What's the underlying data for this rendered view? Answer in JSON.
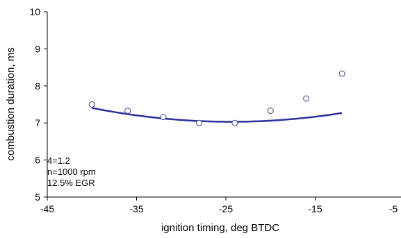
{
  "chart_data": {
    "type": "scatter",
    "title": "",
    "xlabel": "ignition timing, deg BTDC",
    "ylabel": "combustion duration, ms",
    "xlim": [
      -45,
      -5
    ],
    "ylim": [
      5,
      10
    ],
    "x_ticks": [
      "-45",
      "-35",
      "-25",
      "-15",
      "-5"
    ],
    "y_ticks": [
      "5",
      "6",
      "7",
      "8",
      "9",
      "10"
    ],
    "x_tick_values": [
      -45,
      -35,
      -25,
      -15,
      -5
    ],
    "y_tick_values": [
      5,
      6,
      7,
      8,
      9,
      10
    ],
    "grid": false,
    "series": [
      {
        "marker": "open-circle",
        "color": "#3a3f8f",
        "points": [
          {
            "x": -40,
            "y": 7.5
          },
          {
            "x": -36,
            "y": 7.33
          },
          {
            "x": -32,
            "y": 7.16
          },
          {
            "x": -28,
            "y": 7.0
          },
          {
            "x": -24,
            "y": 7.0
          },
          {
            "x": -20,
            "y": 7.33
          },
          {
            "x": -16,
            "y": 7.66
          },
          {
            "x": -12,
            "y": 8.33
          }
        ]
      }
    ],
    "trendline": {
      "type": "polynomial",
      "color": "#2b2f9e",
      "coefficients": [
        0.00154,
        0.0752,
        7.95
      ],
      "x_range": [
        -40,
        -12
      ]
    },
    "annotations": [
      "4=1.2",
      "n=1000 rpm",
      "12.5% EGR"
    ]
  }
}
